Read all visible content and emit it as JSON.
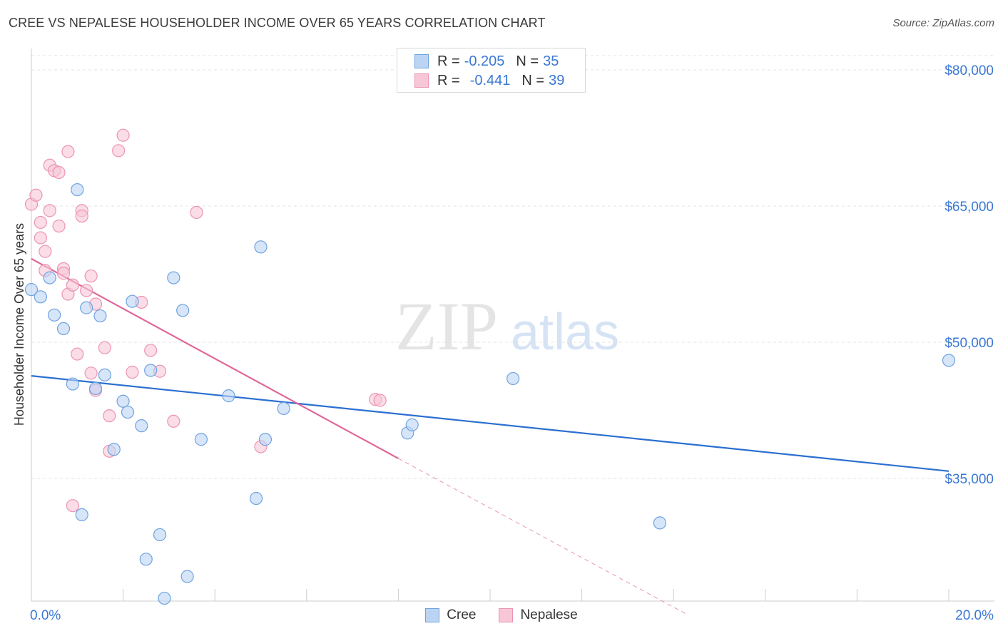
{
  "title": "CREE VS NEPALESE HOUSEHOLDER INCOME OVER 65 YEARS CORRELATION CHART",
  "source": "Source: ZipAtlas.com",
  "watermark": {
    "zip": "ZIP",
    "atlas": "atlas"
  },
  "colors": {
    "cree": "#6fa3e0",
    "cree_fill": "#bcd4f3",
    "cree_line": "#2b6fd1",
    "nepalese": "#ec94b4",
    "nepalese_fill": "#f7c6d7",
    "nepalese_line": "#e0679a",
    "axis_text": "#3a78d4"
  },
  "legend": {
    "rows": [
      {
        "series": "Cree",
        "r_label": "R =",
        "r_value": "-0.205",
        "n_label": "N =",
        "n_value": "35"
      },
      {
        "series": "Nepalese",
        "r_label": "R =",
        "r_value": "-0.441",
        "n_label": "N =",
        "n_value": "39"
      }
    ]
  },
  "chart_data": {
    "type": "scatter",
    "title": "CREE VS NEPALESE HOUSEHOLDER INCOME OVER 65 YEARS CORRELATION CHART",
    "xlabel": "",
    "ylabel": "Householder Income Over 65 years",
    "xlim": [
      0.0,
      20.0
    ],
    "ylim": [
      20000,
      82000
    ],
    "x_tick_labels": [
      "0.0%",
      "20.0%"
    ],
    "y_ticks": [
      35000,
      50000,
      65000,
      80000
    ],
    "y_tick_labels": [
      "$35,000",
      "$50,000",
      "$65,000",
      "$80,000"
    ],
    "grid": true,
    "legend_position": "bottom-center",
    "series": [
      {
        "name": "Cree",
        "points": [
          [
            0.0,
            55800
          ],
          [
            0.2,
            55000
          ],
          [
            0.4,
            57100
          ],
          [
            0.5,
            53000
          ],
          [
            0.7,
            51500
          ],
          [
            0.9,
            45400
          ],
          [
            1.0,
            66800
          ],
          [
            1.1,
            31000
          ],
          [
            1.2,
            53800
          ],
          [
            1.4,
            44900
          ],
          [
            1.5,
            52900
          ],
          [
            1.6,
            46400
          ],
          [
            1.8,
            38200
          ],
          [
            2.0,
            43500
          ],
          [
            2.1,
            42300
          ],
          [
            2.2,
            54500
          ],
          [
            2.4,
            40800
          ],
          [
            2.5,
            26100
          ],
          [
            2.6,
            46900
          ],
          [
            2.8,
            28800
          ],
          [
            2.9,
            21800
          ],
          [
            3.1,
            57100
          ],
          [
            3.3,
            53500
          ],
          [
            3.4,
            24200
          ],
          [
            3.7,
            39300
          ],
          [
            4.3,
            44100
          ],
          [
            4.9,
            32800
          ],
          [
            5.0,
            60500
          ],
          [
            5.1,
            39300
          ],
          [
            5.5,
            42700
          ],
          [
            8.2,
            40000
          ],
          [
            8.3,
            40900
          ],
          [
            10.5,
            46000
          ],
          [
            13.7,
            30100
          ],
          [
            20.0,
            48000
          ]
        ],
        "trend": {
          "x": [
            0.0,
            20.0
          ],
          "y": [
            46300,
            35800
          ]
        }
      },
      {
        "name": "Nepalese",
        "points": [
          [
            0.0,
            65200
          ],
          [
            0.1,
            66200
          ],
          [
            0.2,
            61500
          ],
          [
            0.2,
            63200
          ],
          [
            0.3,
            57900
          ],
          [
            0.3,
            60000
          ],
          [
            0.4,
            64500
          ],
          [
            0.4,
            69500
          ],
          [
            0.5,
            68900
          ],
          [
            0.6,
            68700
          ],
          [
            0.6,
            62800
          ],
          [
            0.7,
            58100
          ],
          [
            0.7,
            57600
          ],
          [
            0.8,
            55300
          ],
          [
            0.8,
            71000
          ],
          [
            0.9,
            56300
          ],
          [
            0.9,
            32000
          ],
          [
            1.0,
            48700
          ],
          [
            1.1,
            64500
          ],
          [
            1.1,
            63900
          ],
          [
            1.2,
            55700
          ],
          [
            1.3,
            57300
          ],
          [
            1.3,
            46600
          ],
          [
            1.4,
            44700
          ],
          [
            1.4,
            54200
          ],
          [
            1.6,
            49400
          ],
          [
            1.7,
            41900
          ],
          [
            1.7,
            38000
          ],
          [
            1.9,
            71100
          ],
          [
            2.0,
            72800
          ],
          [
            2.2,
            46700
          ],
          [
            2.4,
            54400
          ],
          [
            2.6,
            49100
          ],
          [
            2.8,
            46800
          ],
          [
            3.1,
            41300
          ],
          [
            3.6,
            64300
          ],
          [
            5.0,
            38500
          ],
          [
            7.5,
            43700
          ],
          [
            7.6,
            43600
          ]
        ],
        "trend": {
          "x": [
            0.0,
            8.0
          ],
          "y": [
            59200,
            37200
          ]
        },
        "trend_extension": {
          "x": [
            8.0,
            14.3
          ],
          "y": [
            37200,
            20000
          ]
        }
      }
    ]
  }
}
